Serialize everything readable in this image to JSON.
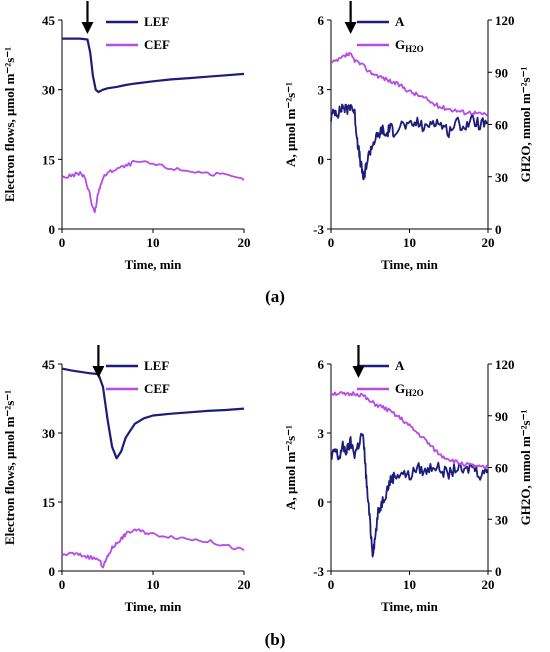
{
  "colors": {
    "lef": "#1c1c7a",
    "cef": "#b54ce6",
    "a": "#1c1c7a",
    "g": "#b54ce6",
    "axis": "#000000"
  },
  "chart_data": [
    {
      "id": "a-left",
      "type": "line",
      "xlabel": "Time, min",
      "ylabel": "Electron flows, μmol m⁻²s⁻¹",
      "xlim": [
        0,
        20
      ],
      "ylim": [
        0,
        45
      ],
      "xticks": [
        "0",
        "10",
        "20"
      ],
      "yticks": [
        "0",
        "15",
        "30",
        "45"
      ],
      "arrow_x": 2.8,
      "series": [
        {
          "name": "LEF",
          "key": "lef",
          "x": [
            0,
            1,
            2,
            2.8,
            3.1,
            3.4,
            3.7,
            4,
            4.5,
            5,
            6,
            7,
            8,
            10,
            12,
            14,
            16,
            18,
            20
          ],
          "y": [
            41,
            41,
            41,
            40.8,
            38,
            33,
            30,
            29.5,
            30,
            30.3,
            30.6,
            31,
            31.3,
            31.8,
            32.2,
            32.5,
            32.8,
            33.1,
            33.4
          ]
        },
        {
          "name": "CEF",
          "key": "cef",
          "x": [
            0,
            1,
            2,
            2.5,
            3,
            3.3,
            3.6,
            4,
            4.5,
            5,
            6,
            7,
            8,
            10,
            12,
            14,
            16,
            18,
            20
          ],
          "y": [
            11,
            11.5,
            12,
            11,
            8,
            5,
            3.5,
            8,
            11,
            12,
            13,
            13.5,
            14.5,
            14,
            13,
            12.5,
            12,
            11.5,
            10.5
          ]
        }
      ]
    },
    {
      "id": "a-right",
      "type": "line",
      "xlabel": "Time, min",
      "ylabel": "A, μmol m⁻²s⁻¹",
      "y2label": "GH2O, mmol m⁻²s⁻¹",
      "xlim": [
        0,
        20
      ],
      "ylim": [
        -3,
        6
      ],
      "y2lim": [
        0,
        120
      ],
      "xticks": [
        "0",
        "10",
        "20"
      ],
      "yticks": [
        "-3",
        "0",
        "3",
        "6"
      ],
      "y2ticks": [
        "0",
        "30",
        "60",
        "90",
        "120"
      ],
      "arrow_x": 2.5,
      "series": [
        {
          "name": "A",
          "key": "a",
          "axis": "left",
          "x": [
            0,
            0.5,
            1,
            1.5,
            2,
            2.5,
            3,
            3.3,
            3.6,
            3.9,
            4.2,
            4.5,
            5,
            5.5,
            6,
            6.5,
            7,
            7.5,
            8,
            9,
            10,
            11,
            12,
            13,
            14,
            15,
            16,
            17,
            18,
            19,
            20
          ],
          "y": [
            1.8,
            2.1,
            2,
            2.3,
            2.1,
            2.4,
            2,
            1,
            0.2,
            -0.4,
            -0.9,
            -0.2,
            0.4,
            0.8,
            1,
            1.3,
            1,
            1.4,
            1.2,
            1.5,
            1.4,
            1.6,
            1.3,
            1.7,
            1.5,
            1.2,
            1.6,
            1.4,
            1.7,
            1.5,
            1.6
          ]
        },
        {
          "name": "GH2O",
          "key": "g",
          "axis": "right",
          "x": [
            0,
            1,
            2,
            2.5,
            3,
            4,
            5,
            6,
            7,
            8,
            9,
            10,
            11,
            12,
            13,
            14,
            15,
            16,
            17,
            18,
            19,
            20
          ],
          "y": [
            95,
            97,
            100,
            100,
            97,
            94,
            90,
            88,
            86,
            84,
            82,
            79,
            77,
            75,
            72,
            70,
            69,
            68,
            67,
            67,
            66,
            66
          ]
        }
      ]
    },
    {
      "id": "b-left",
      "type": "line",
      "xlabel": "Time, min",
      "ylabel": "Electron flows, μmol m⁻²s⁻¹",
      "xlim": [
        0,
        20
      ],
      "ylim": [
        0,
        45
      ],
      "xticks": [
        "0",
        "10",
        "20"
      ],
      "yticks": [
        "0",
        "15",
        "30",
        "45"
      ],
      "arrow_x": 4,
      "series": [
        {
          "name": "LEF",
          "key": "lef",
          "x": [
            0,
            1,
            2,
            3,
            4,
            4.5,
            5,
            5.5,
            6,
            6.5,
            7,
            8,
            9,
            10,
            12,
            14,
            16,
            18,
            20
          ],
          "y": [
            44,
            43.6,
            43.3,
            43,
            42.8,
            40,
            33,
            27,
            24.5,
            26,
            29,
            32,
            33.2,
            33.8,
            34.2,
            34.5,
            34.8,
            35,
            35.3
          ]
        },
        {
          "name": "CEF",
          "key": "cef",
          "x": [
            0,
            1,
            2,
            3,
            4,
            4.5,
            5,
            5.5,
            6,
            6.5,
            7,
            8,
            9,
            10,
            12,
            14,
            16,
            18,
            20
          ],
          "y": [
            3.5,
            3.8,
            3.5,
            3,
            2.5,
            1,
            3,
            5,
            6,
            7,
            8,
            9,
            8.5,
            8,
            7.5,
            7,
            6.5,
            5.5,
            4.5
          ]
        }
      ]
    },
    {
      "id": "b-right",
      "type": "line",
      "xlabel": "Time, min",
      "ylabel": "A, μmol m⁻²s⁻¹",
      "y2label": "GH2O, mmol m⁻²s⁻¹",
      "xlim": [
        0,
        20
      ],
      "ylim": [
        -3,
        6
      ],
      "y2lim": [
        0,
        120
      ],
      "xticks": [
        "0",
        "10",
        "20"
      ],
      "yticks": [
        "-3",
        "0",
        "3",
        "6"
      ],
      "y2ticks": [
        "0",
        "30",
        "60",
        "90",
        "120"
      ],
      "arrow_x": 3.5,
      "series": [
        {
          "name": "A",
          "key": "a",
          "axis": "left",
          "x": [
            0,
            0.5,
            1,
            1.5,
            2,
            2.5,
            3,
            3.5,
            4,
            4.3,
            4.6,
            5,
            5.3,
            5.6,
            6,
            6.5,
            7,
            7.5,
            8,
            9,
            10,
            11,
            12,
            13,
            14,
            15,
            16,
            17,
            18,
            19,
            20
          ],
          "y": [
            1.8,
            2.3,
            1.9,
            2.4,
            2.2,
            2.6,
            2.1,
            2.5,
            3,
            2,
            0.5,
            -1,
            -2.2,
            -1.6,
            -0.5,
            0,
            0.4,
            0.9,
            1.1,
            1.3,
            1.1,
            1.5,
            1.3,
            1.6,
            1.4,
            1.2,
            1.5,
            1.3,
            1.6,
            1.2,
            1.4
          ]
        },
        {
          "name": "GH2O",
          "key": "g",
          "axis": "right",
          "x": [
            0,
            1,
            2,
            3,
            4,
            5,
            6,
            7,
            8,
            9,
            10,
            11,
            12,
            13,
            14,
            15,
            16,
            17,
            18,
            19,
            20
          ],
          "y": [
            103,
            103,
            102,
            103,
            102,
            98,
            96,
            94,
            91,
            88,
            84,
            80,
            76,
            71,
            67,
            65,
            63,
            62,
            61,
            60,
            60
          ]
        }
      ]
    }
  ],
  "panel_labels": {
    "a": "(a)",
    "b": "(b)"
  }
}
